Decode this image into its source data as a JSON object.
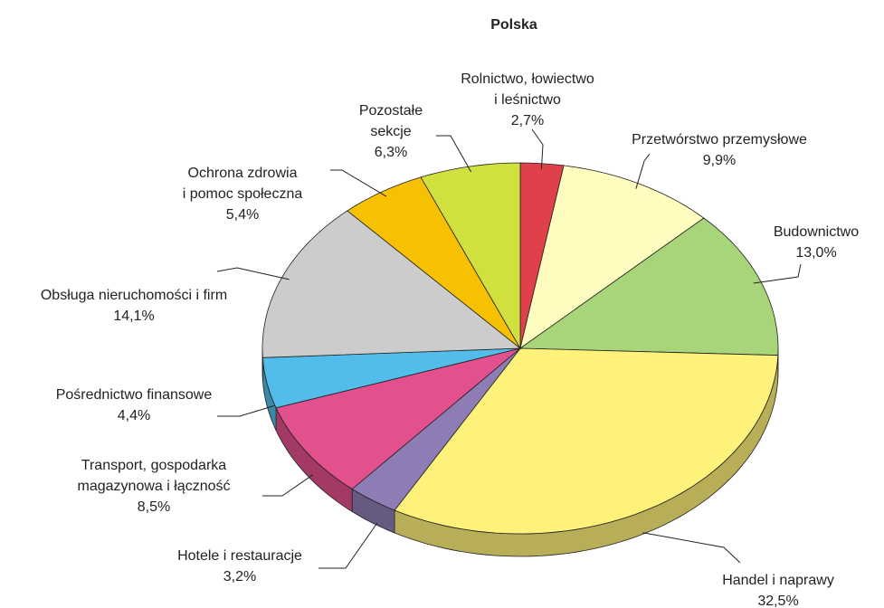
{
  "chart_data": {
    "type": "pie3d",
    "title": "Polska",
    "categories": [
      [
        "Rolnictwo, łowiectwo",
        "i leśnictwo"
      ],
      [
        "Przetwórstwo przemysłowe"
      ],
      [
        "Budownictwo"
      ],
      [
        "Handel i naprawy"
      ],
      [
        "Hotele i restauracje"
      ],
      [
        "Transport, gospodarka",
        "magazynowa i łączność"
      ],
      [
        "Pośrednictwo finansowe"
      ],
      [
        "Obsługa nieruchomości i firm"
      ],
      [
        "Ochrona zdrowia",
        "i pomoc społeczna"
      ],
      [
        "Pozostałe",
        "sekcje"
      ]
    ],
    "values": [
      2.7,
      9.9,
      13.0,
      32.5,
      3.2,
      8.5,
      4.4,
      14.1,
      5.4,
      6.3
    ],
    "value_labels": [
      "2,7%",
      "9,9%",
      "13,0%",
      "32,5%",
      "3,2%",
      "8,5%",
      "4,4%",
      "14,1%",
      "5,4%",
      "6,3%"
    ],
    "colors": [
      "#e0404a",
      "#fffcc0",
      "#a8d47a",
      "#fff27a",
      "#8e7cb5",
      "#e2508e",
      "#52bdea",
      "#cccccc",
      "#f7c000",
      "#d0e03e"
    ]
  }
}
